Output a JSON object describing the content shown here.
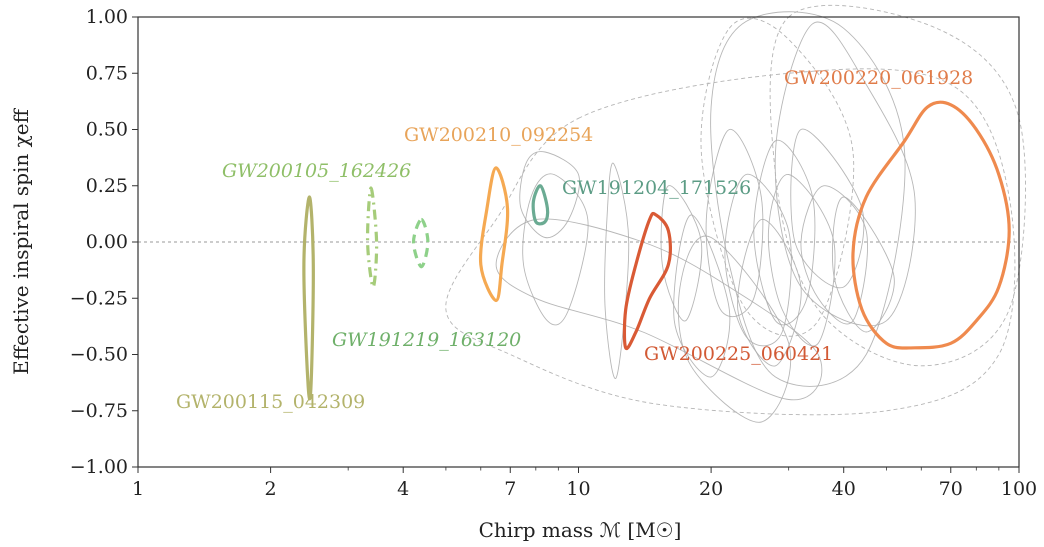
{
  "chart_data": {
    "type": "scatter",
    "xlabel": "Chirp mass ℳ [M☉]",
    "ylabel": "Effective inspiral spin χeff",
    "xscale": "log",
    "xlim": [
      1,
      100
    ],
    "ylim": [
      -1.0,
      1.0
    ],
    "x_ticks": [
      1,
      2,
      4,
      7,
      10,
      20,
      40,
      70,
      100
    ],
    "x_tick_labels": [
      "1",
      "2",
      "4",
      "7",
      "10",
      "20",
      "40",
      "70",
      "100"
    ],
    "y_ticks": [
      -1.0,
      -0.75,
      -0.5,
      -0.25,
      0.0,
      0.25,
      0.5,
      0.75,
      1.0
    ],
    "y_tick_labels": [
      "−1.00",
      "−0.75",
      "−0.50",
      "−0.25",
      "0.00",
      "0.25",
      "0.50",
      "0.75",
      "1.00"
    ],
    "grid": false,
    "reference_line": {
      "y": 0.0,
      "style": "dashed"
    },
    "highlighted_events": [
      {
        "name": "GW200115_042309",
        "color": "#b3b36b",
        "style": "solid",
        "x": [
          2.45,
          2.5,
          2.47,
          2.43,
          2.38,
          2.45
        ],
        "y": [
          0.2,
          -0.1,
          -0.64,
          -0.62,
          -0.1,
          0.2
        ]
      },
      {
        "name": "GW200105_162426",
        "color": "#a6cc7a",
        "style": "dashdot",
        "italic": true,
        "x": [
          3.38,
          3.48,
          3.42,
          3.32,
          3.38
        ],
        "y": [
          0.24,
          0.0,
          -0.2,
          0.0,
          0.24
        ]
      },
      {
        "name": "GW191219_163120",
        "color": "#8ed18a",
        "style": "dashed",
        "italic": true,
        "x": [
          4.4,
          4.55,
          4.4,
          4.22,
          4.4
        ],
        "y": [
          0.1,
          0.0,
          -0.11,
          0.0,
          0.1
        ]
      },
      {
        "name": "GW200210_092254",
        "color": "#f5a952",
        "style": "solid",
        "x": [
          6.5,
          6.9,
          6.7,
          6.5,
          6.0,
          6.2,
          6.5
        ],
        "y": [
          0.33,
          0.15,
          -0.1,
          -0.26,
          -0.1,
          0.15,
          0.33
        ]
      },
      {
        "name": "GW191204_171526",
        "color": "#6bab93",
        "style": "solid",
        "x": [
          8.2,
          8.5,
          8.4,
          8.0,
          7.9,
          8.2
        ],
        "y": [
          0.25,
          0.15,
          0.09,
          0.09,
          0.18,
          0.25
        ]
      },
      {
        "name": "GW200225_060421",
        "color": "#d95a35",
        "style": "solid",
        "x": [
          15.0,
          16.0,
          16.0,
          14.5,
          13.5,
          12.8,
          12.8,
          13.5,
          14.5,
          15.0
        ],
        "y": [
          0.12,
          0.05,
          -0.1,
          -0.25,
          -0.4,
          -0.47,
          -0.3,
          -0.1,
          0.1,
          0.12
        ]
      },
      {
        "name": "GW200220_061928",
        "color": "#ef8a4e",
        "style": "solid",
        "x": [
          70,
          80,
          90,
          95,
          90,
          80,
          70,
          58,
          50,
          44,
          42,
          45,
          55,
          62,
          70
        ],
        "y": [
          0.61,
          0.5,
          0.3,
          0.05,
          -0.2,
          -0.35,
          -0.45,
          -0.47,
          -0.45,
          -0.3,
          -0.05,
          0.2,
          0.45,
          0.6,
          0.61
        ]
      }
    ]
  },
  "annotations": {
    "gw200115": "GW200115_042309",
    "gw200105": "GW200105_162426",
    "gw191219": "GW191219_163120",
    "gw200210": "GW200210_092254",
    "gw191204": "GW191204_171526",
    "gw200225": "GW200225_060421",
    "gw200220": "GW200220_061928"
  }
}
